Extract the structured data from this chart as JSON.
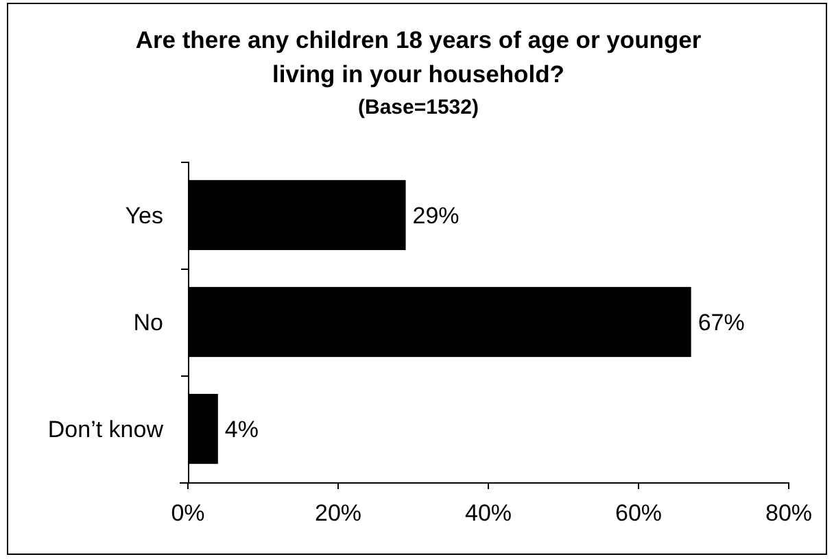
{
  "chart_data": {
    "type": "bar",
    "orientation": "horizontal",
    "title": "Are there any children 18 years of age or younger living in your household?",
    "subtitle": "(Base=1532)",
    "categories": [
      "Yes",
      "No",
      "Don’t know"
    ],
    "values": [
      29,
      67,
      4
    ],
    "color": "#000000",
    "value_labels": [
      "29%",
      "67%",
      "4%"
    ],
    "xlim": [
      0,
      80
    ],
    "xticks": [
      {
        "value": 0,
        "label": "0%"
      },
      {
        "value": 20,
        "label": "20%"
      },
      {
        "value": 40,
        "label": "40%"
      },
      {
        "value": 60,
        "label": "60%"
      },
      {
        "value": 80,
        "label": "80%"
      }
    ],
    "grid": false
  }
}
